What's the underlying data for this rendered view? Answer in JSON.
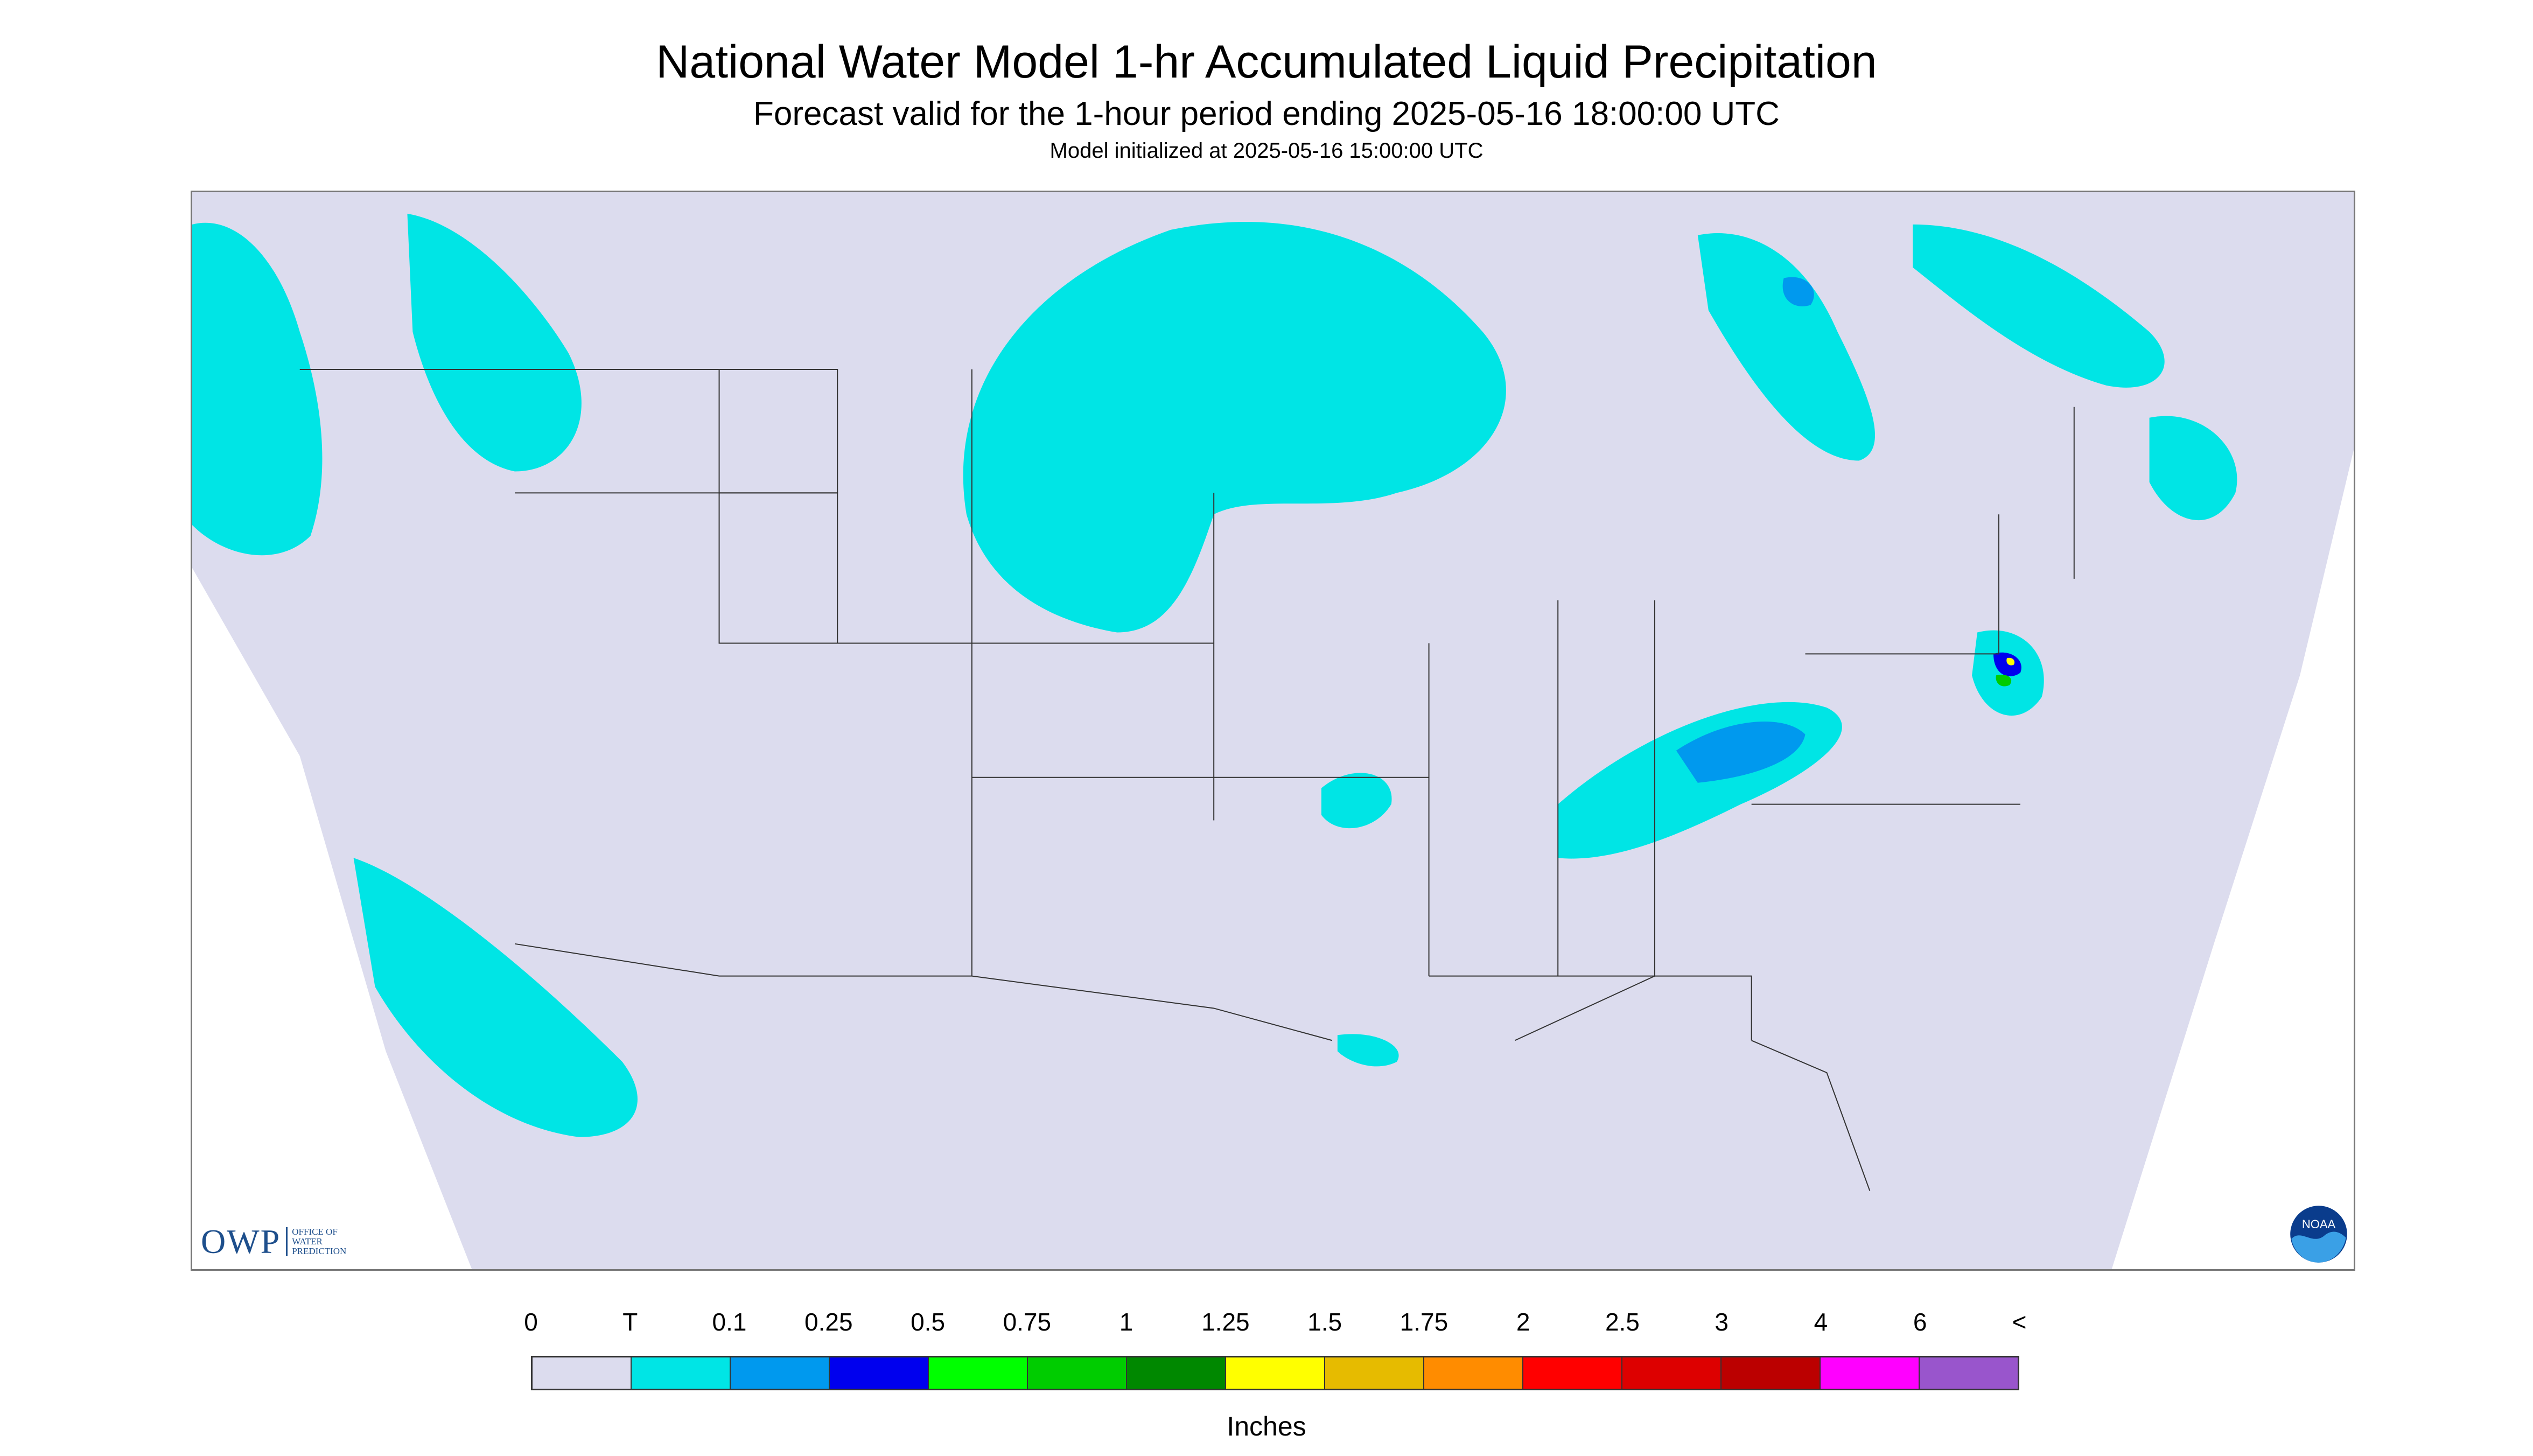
{
  "header": {
    "title": "National Water Model 1-hr Accumulated Liquid Precipitation",
    "subtitle": "Forecast valid for the 1-hour period ending 2025-05-16 18:00:00 UTC",
    "init_line": "Model initialized at 2025-05-16 15:00:00 UTC"
  },
  "map": {
    "background_color": "#dcdcee",
    "outside_color": "#ffffff",
    "precip_colors": {
      "trace": "#00e5e5",
      "light": "#0099ee",
      "heavy": "#0000ee",
      "green": "#00cc00",
      "yellow": "#ffff00"
    }
  },
  "logos": {
    "owp_letters": "OWP",
    "owp_sub": [
      "OFFICE OF",
      "WATER",
      "PREDICTION"
    ],
    "noaa_text": "NOAA"
  },
  "legend": {
    "labels": [
      "0",
      "T",
      "0.1",
      "0.25",
      "0.5",
      "0.75",
      "1",
      "1.25",
      "1.5",
      "1.75",
      "2",
      "2.5",
      "3",
      "4",
      "6",
      "<"
    ],
    "colors": [
      "#dcdcee",
      "#00e5e5",
      "#0099ee",
      "#0000ee",
      "#00ff00",
      "#00cc00",
      "#008800",
      "#ffff00",
      "#e6bb00",
      "#ff8c00",
      "#ff0000",
      "#dd0000",
      "#bb0000",
      "#ff00ff",
      "#9955cc"
    ],
    "unit": "Inches"
  }
}
